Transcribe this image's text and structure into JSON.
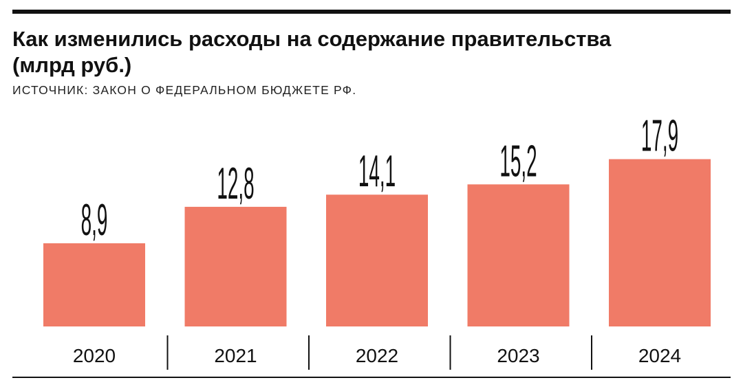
{
  "title": "Как изменились расходы на содержание правительства (млрд руб.)",
  "source": "ИСТОЧНИК: ЗАКОН О ФЕДЕРАЛЬНОМ БЮДЖЕТЕ РФ.",
  "colors": {
    "bar": "#f07b67",
    "text": "#111111"
  },
  "chart_data": {
    "type": "bar",
    "categories": [
      "2020",
      "2021",
      "2022",
      "2023",
      "2024"
    ],
    "values": [
      8.9,
      12.8,
      14.1,
      15.2,
      17.9
    ],
    "value_labels": [
      "8,9",
      "12,8",
      "14,1",
      "15,2",
      "17,9"
    ],
    "xlabel": "",
    "ylabel": "",
    "grid": false,
    "legend": "none"
  }
}
